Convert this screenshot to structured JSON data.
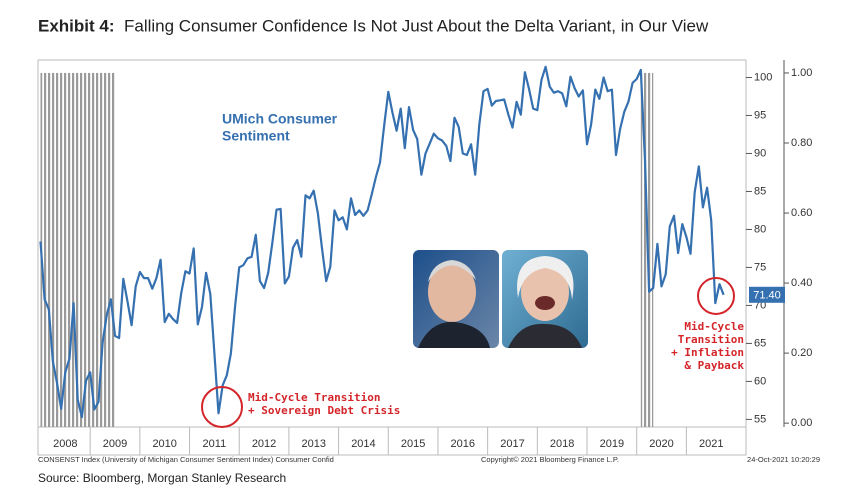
{
  "chart_data": {
    "type": "line",
    "title_prefix": "Exhibit 4:",
    "title": "Falling Consumer Confidence Is Not Just About the Delta Variant, in Our View",
    "series": [
      {
        "name": "UMich Consumer Sentiment",
        "color": "#3570b0",
        "x": [
          2008,
          2008.083,
          2008.167,
          2008.25,
          2008.333,
          2008.417,
          2008.5,
          2008.583,
          2008.667,
          2008.75,
          2008.833,
          2008.917,
          2009,
          2009.083,
          2009.167,
          2009.25,
          2009.333,
          2009.417,
          2009.5,
          2009.583,
          2009.667,
          2009.75,
          2009.833,
          2009.917,
          2010,
          2010.083,
          2010.167,
          2010.25,
          2010.333,
          2010.417,
          2010.5,
          2010.583,
          2010.667,
          2010.75,
          2010.833,
          2010.917,
          2011,
          2011.083,
          2011.167,
          2011.25,
          2011.333,
          2011.417,
          2011.5,
          2011.583,
          2011.667,
          2011.75,
          2011.833,
          2011.917,
          2012,
          2012.083,
          2012.167,
          2012.25,
          2012.333,
          2012.417,
          2012.5,
          2012.583,
          2012.667,
          2012.75,
          2012.833,
          2012.917,
          2013,
          2013.083,
          2013.167,
          2013.25,
          2013.333,
          2013.417,
          2013.5,
          2013.583,
          2013.667,
          2013.75,
          2013.833,
          2013.917,
          2014,
          2014.083,
          2014.167,
          2014.25,
          2014.333,
          2014.417,
          2014.5,
          2014.583,
          2014.667,
          2014.75,
          2014.833,
          2014.917,
          2015,
          2015.083,
          2015.167,
          2015.25,
          2015.333,
          2015.417,
          2015.5,
          2015.583,
          2015.667,
          2015.75,
          2015.833,
          2015.917,
          2016,
          2016.083,
          2016.167,
          2016.25,
          2016.333,
          2016.417,
          2016.5,
          2016.583,
          2016.667,
          2016.75,
          2016.833,
          2016.917,
          2017,
          2017.083,
          2017.167,
          2017.25,
          2017.333,
          2017.417,
          2017.5,
          2017.583,
          2017.667,
          2017.75,
          2017.833,
          2017.917,
          2018,
          2018.083,
          2018.167,
          2018.25,
          2018.333,
          2018.417,
          2018.5,
          2018.583,
          2018.667,
          2018.75,
          2018.833,
          2018.917,
          2019,
          2019.083,
          2019.167,
          2019.25,
          2019.333,
          2019.417,
          2019.5,
          2019.583,
          2019.667,
          2019.75,
          2019.833,
          2019.917,
          2020,
          2020.083,
          2020.167,
          2020.25,
          2020.333,
          2020.417,
          2020.5,
          2020.583,
          2020.667,
          2020.75,
          2020.833,
          2020.917,
          2021,
          2021.083,
          2021.167,
          2021.25,
          2021.333,
          2021.417,
          2021.5,
          2021.583,
          2021.667,
          2021.75
        ],
        "values": [
          78.4,
          70.8,
          69.5,
          62.6,
          59.8,
          56.4,
          61.2,
          63.0,
          70.3,
          57.6,
          55.3,
          60.1,
          61.2,
          56.3,
          57.3,
          65.1,
          68.7,
          70.8,
          66.0,
          65.7,
          73.5,
          70.6,
          67.4,
          72.5,
          74.4,
          73.6,
          73.6,
          72.2,
          73.6,
          76.0,
          67.8,
          68.9,
          68.2,
          67.7,
          71.6,
          74.5,
          74.2,
          77.5,
          67.5,
          69.8,
          74.3,
          71.5,
          63.7,
          55.8,
          59.5,
          60.8,
          63.7,
          69.9,
          75.0,
          75.3,
          76.2,
          76.4,
          79.3,
          73.2,
          72.3,
          74.3,
          78.3,
          82.6,
          82.7,
          72.9,
          73.8,
          77.6,
          78.6,
          76.4,
          84.5,
          84.1,
          85.1,
          82.1,
          77.5,
          73.2,
          75.1,
          82.5,
          81.2,
          81.6,
          80.0,
          84.1,
          81.9,
          82.5,
          81.8,
          82.5,
          84.6,
          86.9,
          88.8,
          93.6,
          98.1,
          95.4,
          93.0,
          95.9,
          90.7,
          96.1,
          93.1,
          91.9,
          87.2,
          90.0,
          91.3,
          92.6,
          92.0,
          91.7,
          91.0,
          89.0,
          94.7,
          93.5,
          90.0,
          89.8,
          91.2,
          87.2,
          93.8,
          98.2,
          98.5,
          96.3,
          96.9,
          97.0,
          97.1,
          95.1,
          93.4,
          96.8,
          95.1,
          100.7,
          98.5,
          95.9,
          95.7,
          99.7,
          101.4,
          98.8,
          98.0,
          98.2,
          97.9,
          96.2,
          100.1,
          98.6,
          97.5,
          98.3,
          91.2,
          93.8,
          98.4,
          97.2,
          100.0,
          98.2,
          98.4,
          89.8,
          93.2,
          95.5,
          96.8,
          99.3,
          99.8,
          101.0,
          89.1,
          71.8,
          72.3,
          78.1,
          72.5,
          74.1,
          80.4,
          81.8,
          76.9,
          80.7,
          79.0,
          76.8,
          84.9,
          88.3,
          82.9,
          85.5,
          81.2,
          70.3,
          72.8,
          71.4
        ],
        "last_value_label": "71.40"
      }
    ],
    "recessions": [
      [
        2008,
        2009.5
      ],
      [
        2020.083,
        2020.333
      ]
    ],
    "recession_level": 1,
    "xlim": [
      2007.95,
      2022.2
    ],
    "xticks": [
      {
        "value": 2008.5,
        "label": "2008"
      },
      {
        "value": 2009.5,
        "label": "2009"
      },
      {
        "value": 2010.5,
        "label": "2010"
      },
      {
        "value": 2011.5,
        "label": "2011"
      },
      {
        "value": 2012.5,
        "label": "2012"
      },
      {
        "value": 2013.5,
        "label": "2013"
      },
      {
        "value": 2014.5,
        "label": "2014"
      },
      {
        "value": 2015.5,
        "label": "2015"
      },
      {
        "value": 2016.5,
        "label": "2016"
      },
      {
        "value": 2017.5,
        "label": "2017"
      },
      {
        "value": 2018.5,
        "label": "2018"
      },
      {
        "value": 2019.5,
        "label": "2019"
      },
      {
        "value": 2020.5,
        "label": "2020"
      },
      {
        "value": 2021.5,
        "label": "2021"
      }
    ],
    "ylim": [
      54,
      102.3
    ],
    "yticks": [
      55,
      60,
      65,
      70,
      75,
      80,
      85,
      90,
      95,
      100
    ],
    "y2lim": [
      -0.011,
      1.037
    ],
    "y2ticks": [
      {
        "value": 0,
        "label": "0.00"
      },
      {
        "value": 0.2,
        "label": "0.20"
      },
      {
        "value": 0.4,
        "label": "0.40"
      },
      {
        "value": 0.6,
        "label": "0.60"
      },
      {
        "value": 0.8,
        "label": "0.80"
      },
      {
        "value": 1,
        "label": "1.00"
      }
    ],
    "annotations": {
      "series_label_1": "UMich Consumer",
      "series_label_2": "Sentiment",
      "note_2011_1": "Mid-Cycle Transition",
      "note_2011_2": "+ Sovereign Debt Crisis",
      "note_2021_1": "Mid-Cycle",
      "note_2021_2": "Transition",
      "note_2021_3": "+ Inflation",
      "note_2021_4": "& Payback"
    },
    "footer": {
      "left": "CONSENST Index (University of Michigan Consumer Sentiment Index) Consumer Confid",
      "center": "Copyright© 2021 Bloomberg Finance L.P.",
      "right": "24-Oct-2021 10:20:29"
    },
    "source": "Source: Bloomberg, Morgan Stanley Research"
  }
}
